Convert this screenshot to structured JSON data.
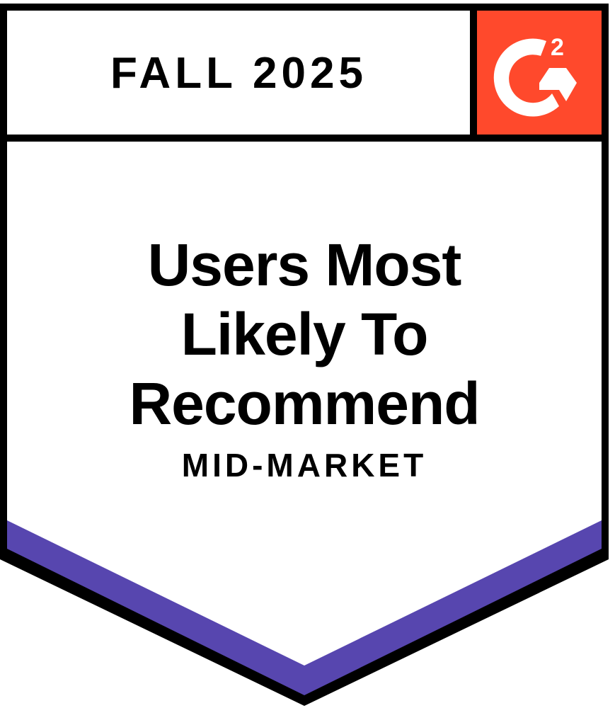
{
  "badge": {
    "season": "FALL 2025",
    "title_lines": [
      "Users Most",
      "Likely To",
      "Recommend"
    ],
    "segment": "MID-MARKET",
    "logo": "g2-logo",
    "colors": {
      "logo_bg": "#FF492C",
      "band": "#5746AF",
      "border": "#000000"
    }
  }
}
